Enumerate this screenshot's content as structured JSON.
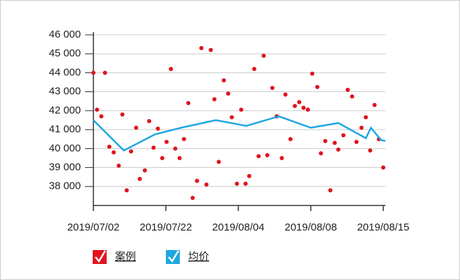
{
  "chart_data": {
    "type": "scatter-line",
    "series": [
      {
        "name": "案例",
        "type": "scatter",
        "color": "#e0141e",
        "x": [
          0,
          0.05,
          0.11,
          0.16,
          0.22,
          0.28,
          0.35,
          0.4,
          0.46,
          0.52,
          0.59,
          0.64,
          0.71,
          0.77,
          0.83,
          0.89,
          0.95,
          1.01,
          1.07,
          1.13,
          1.19,
          1.25,
          1.31,
          1.37,
          1.43,
          1.49,
          1.56,
          1.62,
          1.67,
          1.73,
          1.8,
          1.86,
          1.91,
          1.98,
          2.04,
          2.1,
          2.15,
          2.22,
          2.28,
          2.35,
          2.4,
          2.47,
          2.53,
          2.6,
          2.65,
          2.72,
          2.78,
          2.84,
          2.9,
          2.96,
          3.02,
          3.09,
          3.14,
          3.2,
          3.27,
          3.33,
          3.38,
          3.45,
          3.51,
          3.57,
          3.63,
          3.7,
          3.76,
          3.82,
          3.88,
          3.94,
          4.0
        ],
        "values": [
          44000,
          42050,
          41700,
          44000,
          40100,
          39800,
          39100,
          41800,
          37800,
          39850,
          41100,
          38400,
          38850,
          41450,
          40050,
          41050,
          39500,
          40350,
          44200,
          40000,
          39500,
          40500,
          42400,
          37400,
          38300,
          45300,
          38100,
          45200,
          42600,
          39300,
          43600,
          42900,
          41650,
          38150,
          42050,
          38150,
          38550,
          44200,
          39600,
          44900,
          39650,
          43200,
          41700,
          39500,
          42850,
          40500,
          42250,
          42450,
          42150,
          42050,
          43950,
          43250,
          39750,
          40400,
          37800,
          40300,
          39950,
          40700,
          43100,
          42750,
          40350,
          41100,
          41650,
          39900,
          42300,
          40500,
          39000
        ]
      },
      {
        "name": "均价",
        "type": "line",
        "color": "#1ea7e1",
        "x": [
          0,
          0.42,
          0.85,
          1.21,
          1.69,
          2.11,
          2.56,
          3.0,
          3.38,
          3.76,
          3.83,
          3.97,
          4.03
        ],
        "values": [
          41500,
          39900,
          40750,
          41100,
          41500,
          41200,
          41700,
          41100,
          41350,
          40550,
          41100,
          40450,
          40400
        ]
      }
    ],
    "xlim": [
      0,
      4.03
    ],
    "xticks": [
      {
        "value": 0,
        "label": "2019/07/02"
      },
      {
        "value": 1,
        "label": "2019/07/22"
      },
      {
        "value": 2,
        "label": "2019/08/04"
      },
      {
        "value": 3,
        "label": "2019/08/08"
      },
      {
        "value": 4,
        "label": "2019/08/15"
      }
    ],
    "ylim": [
      37000,
      46000
    ],
    "yticks": [
      {
        "value": 38000,
        "label": "38 000"
      },
      {
        "value": 39000,
        "label": "39 000"
      },
      {
        "value": 40000,
        "label": "40 000"
      },
      {
        "value": 41000,
        "label": "41 000"
      },
      {
        "value": 42000,
        "label": "42 000"
      },
      {
        "value": 43000,
        "label": "43 000"
      },
      {
        "value": 44000,
        "label": "44 000"
      },
      {
        "value": 45000,
        "label": "45 000"
      },
      {
        "value": 46000,
        "label": "46 000"
      }
    ],
    "grid": true
  }
}
